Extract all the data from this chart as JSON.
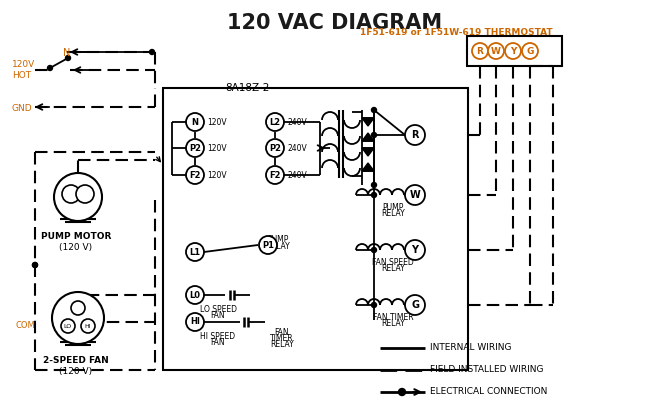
{
  "title": "120 VAC DIAGRAM",
  "title_color": "#1a1a1a",
  "title_fontsize": 15,
  "thermostat_label": "1F51-619 or 1F51W-619 THERMOSTAT",
  "thermostat_color": "#cc6600",
  "thermostat_terminals": [
    "R",
    "W",
    "Y",
    "G"
  ],
  "controller_label": "8A18Z-2",
  "bg_color": "#ffffff",
  "line_color": "#000000",
  "orange_color": "#cc6600"
}
